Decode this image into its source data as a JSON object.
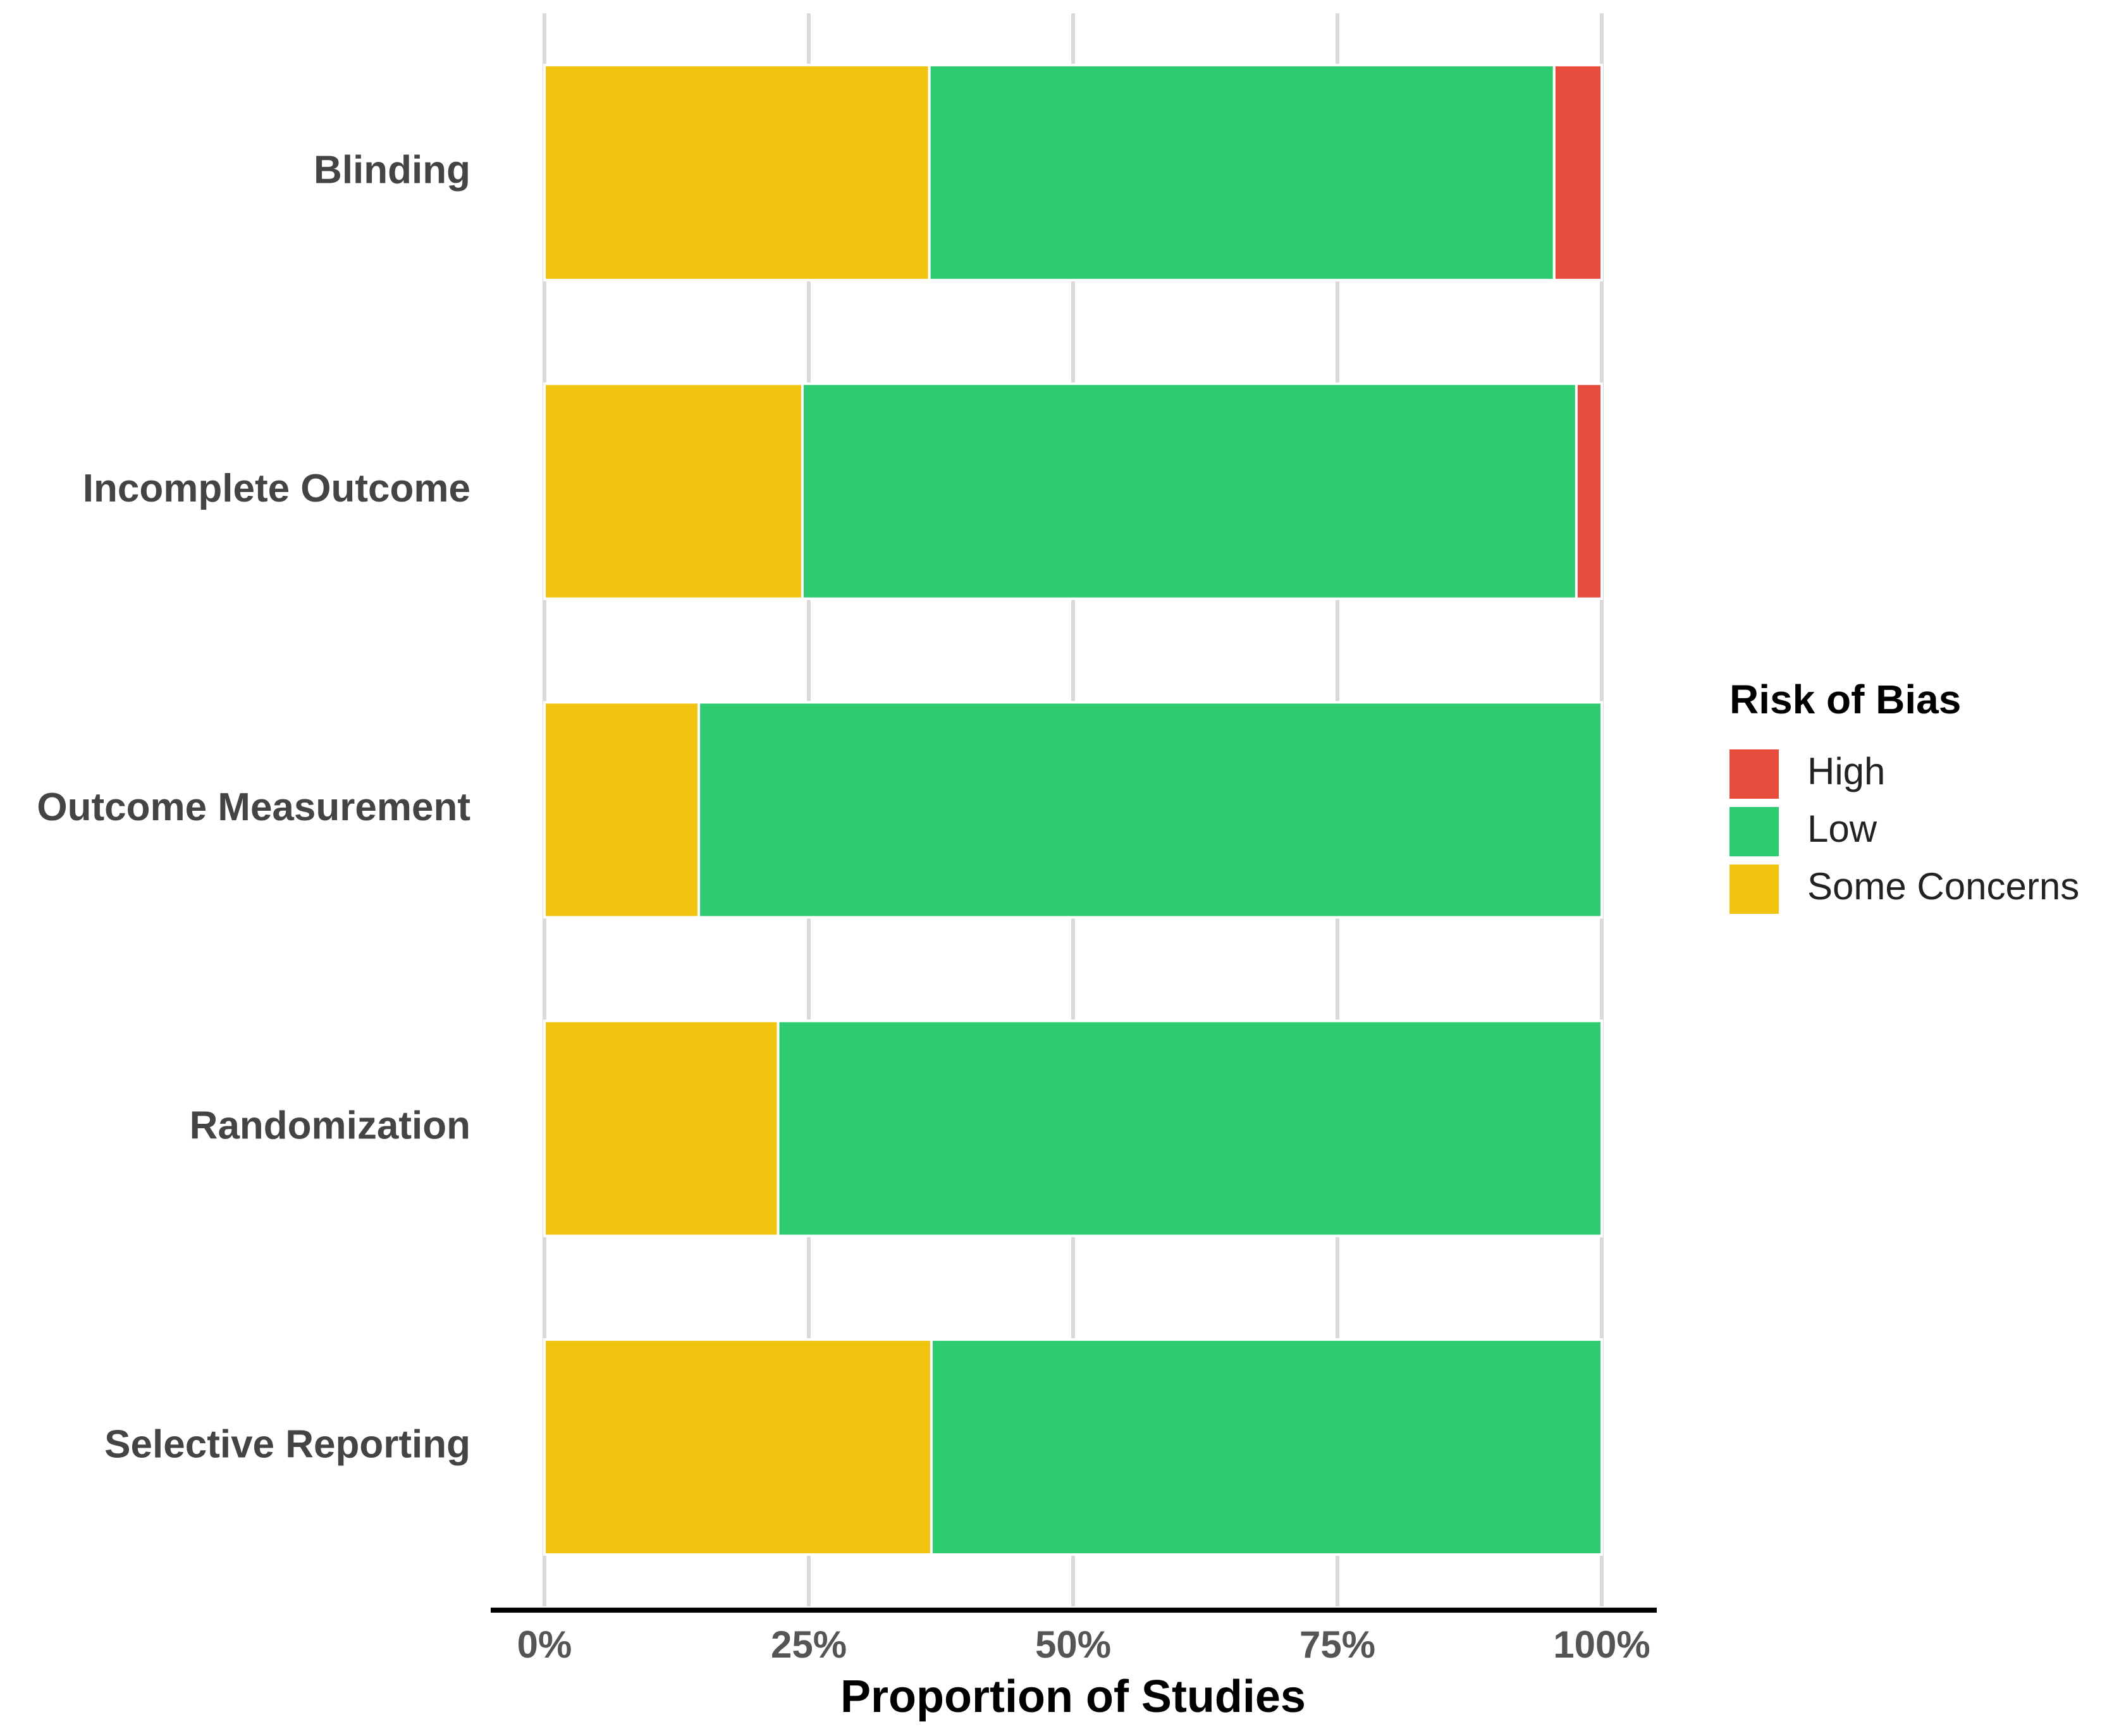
{
  "chart_data": {
    "type": "stacked-barh",
    "x_label": "Proportion of Studies",
    "legend_title": "Risk of Bias",
    "legend_position": "right",
    "categories": [
      "Blinding",
      "Incomplete  Outcome",
      "Outcome  Measurement",
      "Randomization",
      "Selective  Reporting"
    ],
    "series": [
      {
        "name": "High",
        "color": "#e74c3c",
        "values": [
          4.5,
          2.4,
          0,
          0,
          0
        ]
      },
      {
        "name": "Low",
        "color": "#2ecc71",
        "values": [
          59.1,
          73.2,
          85.4,
          77.9,
          63.4
        ]
      },
      {
        "name": "Some Concerns",
        "color": "#f1c40f",
        "values": [
          36.4,
          24.4,
          14.6,
          22.1,
          36.6
        ]
      }
    ],
    "xlim": [
      0,
      100
    ],
    "xticks": [
      {
        "value": 0,
        "label": "0%"
      },
      {
        "value": 25,
        "label": "25%"
      },
      {
        "value": 50,
        "label": "50%"
      },
      {
        "value": 75,
        "label": "75%"
      },
      {
        "value": 100,
        "label": "100%"
      }
    ],
    "grid": true
  }
}
